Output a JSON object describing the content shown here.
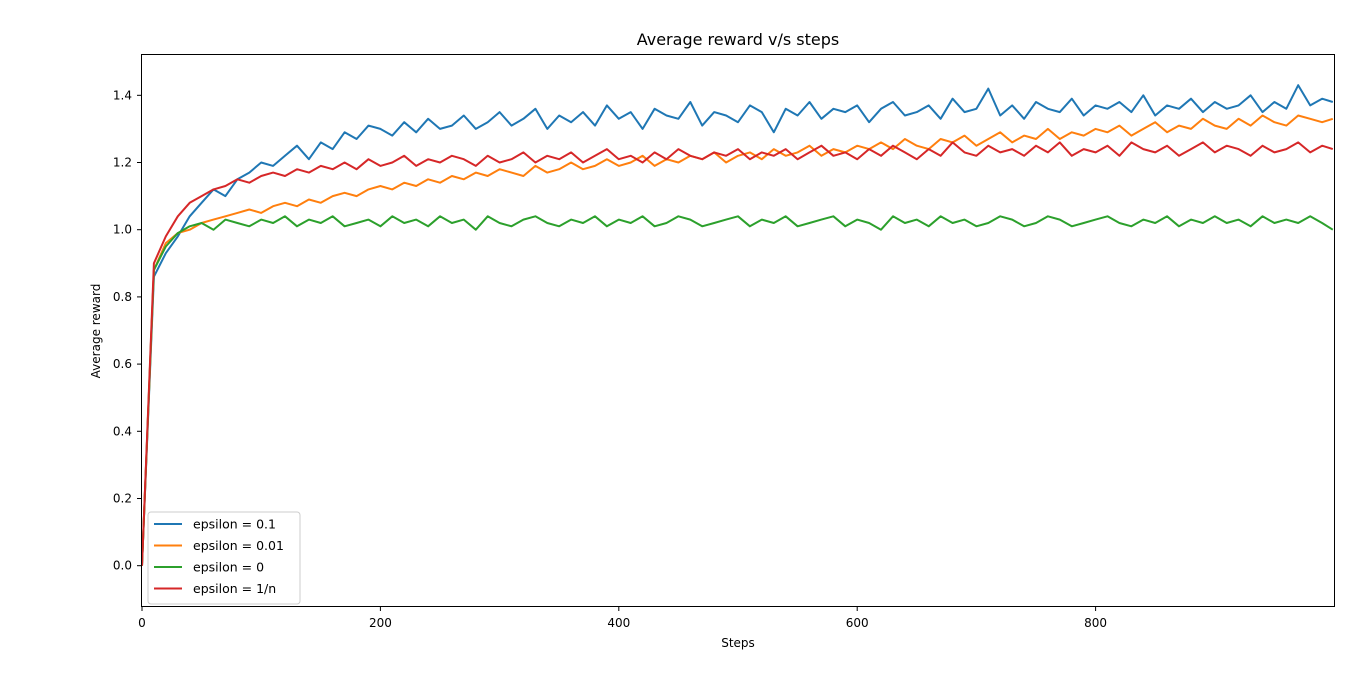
{
  "chart_data": {
    "type": "line",
    "title": "Average reward v/s steps",
    "xlabel": "Steps",
    "ylabel": "Average reward",
    "xlim": [
      0,
      1000
    ],
    "ylim": [
      -0.12,
      1.52
    ],
    "xticks": [
      0,
      200,
      400,
      600,
      800
    ],
    "xtick_labels": [
      "0",
      "200",
      "400",
      "600",
      "800"
    ],
    "yticks": [
      0.0,
      0.2,
      0.4,
      0.6,
      0.8,
      1.0,
      1.2,
      1.4
    ],
    "ytick_labels": [
      "0.0",
      "0.2",
      "0.4",
      "0.6",
      "0.8",
      "1.0",
      "1.2",
      "1.4"
    ],
    "grid": false,
    "legend_position": "bottom-left",
    "sampled_every": 10,
    "series": [
      {
        "name": "epsilon = 0.1",
        "color": "#1f77b4",
        "x": [
          0,
          10,
          20,
          30,
          40,
          50,
          60,
          70,
          80,
          90,
          100,
          110,
          120,
          130,
          140,
          150,
          160,
          170,
          180,
          190,
          200,
          210,
          220,
          230,
          240,
          250,
          260,
          270,
          280,
          290,
          300,
          310,
          320,
          330,
          340,
          350,
          360,
          370,
          380,
          390,
          400,
          410,
          420,
          430,
          440,
          450,
          460,
          470,
          480,
          490,
          500,
          510,
          520,
          530,
          540,
          550,
          560,
          570,
          580,
          590,
          600,
          610,
          620,
          630,
          640,
          650,
          660,
          670,
          680,
          690,
          700,
          710,
          720,
          730,
          740,
          750,
          760,
          770,
          780,
          790,
          800,
          810,
          820,
          830,
          840,
          850,
          860,
          870,
          880,
          890,
          900,
          910,
          920,
          930,
          940,
          950,
          960,
          970,
          980,
          990,
          999
        ],
        "values": [
          0.0,
          0.86,
          0.93,
          0.98,
          1.04,
          1.08,
          1.12,
          1.1,
          1.15,
          1.17,
          1.2,
          1.19,
          1.22,
          1.25,
          1.21,
          1.26,
          1.24,
          1.29,
          1.27,
          1.31,
          1.3,
          1.28,
          1.32,
          1.29,
          1.33,
          1.3,
          1.31,
          1.34,
          1.3,
          1.32,
          1.35,
          1.31,
          1.33,
          1.36,
          1.3,
          1.34,
          1.32,
          1.35,
          1.31,
          1.37,
          1.33,
          1.35,
          1.3,
          1.36,
          1.34,
          1.33,
          1.38,
          1.31,
          1.35,
          1.34,
          1.32,
          1.37,
          1.35,
          1.29,
          1.36,
          1.34,
          1.38,
          1.33,
          1.36,
          1.35,
          1.37,
          1.32,
          1.36,
          1.38,
          1.34,
          1.35,
          1.37,
          1.33,
          1.39,
          1.35,
          1.36,
          1.42,
          1.34,
          1.37,
          1.33,
          1.38,
          1.36,
          1.35,
          1.39,
          1.34,
          1.37,
          1.36,
          1.38,
          1.35,
          1.4,
          1.34,
          1.37,
          1.36,
          1.39,
          1.35,
          1.38,
          1.36,
          1.37,
          1.4,
          1.35,
          1.38,
          1.36,
          1.43,
          1.37,
          1.39,
          1.38
        ]
      },
      {
        "name": "epsilon = 0.01",
        "color": "#ff7f0e",
        "x": [
          0,
          10,
          20,
          30,
          40,
          50,
          60,
          70,
          80,
          90,
          100,
          110,
          120,
          130,
          140,
          150,
          160,
          170,
          180,
          190,
          200,
          210,
          220,
          230,
          240,
          250,
          260,
          270,
          280,
          290,
          300,
          310,
          320,
          330,
          340,
          350,
          360,
          370,
          380,
          390,
          400,
          410,
          420,
          430,
          440,
          450,
          460,
          470,
          480,
          490,
          500,
          510,
          520,
          530,
          540,
          550,
          560,
          570,
          580,
          590,
          600,
          610,
          620,
          630,
          640,
          650,
          660,
          670,
          680,
          690,
          700,
          710,
          720,
          730,
          740,
          750,
          760,
          770,
          780,
          790,
          800,
          810,
          820,
          830,
          840,
          850,
          860,
          870,
          880,
          890,
          900,
          910,
          920,
          930,
          940,
          950,
          960,
          970,
          980,
          990,
          999
        ],
        "values": [
          0.0,
          0.88,
          0.96,
          0.99,
          1.0,
          1.02,
          1.03,
          1.04,
          1.05,
          1.06,
          1.05,
          1.07,
          1.08,
          1.07,
          1.09,
          1.08,
          1.1,
          1.11,
          1.1,
          1.12,
          1.13,
          1.12,
          1.14,
          1.13,
          1.15,
          1.14,
          1.16,
          1.15,
          1.17,
          1.16,
          1.18,
          1.17,
          1.16,
          1.19,
          1.17,
          1.18,
          1.2,
          1.18,
          1.19,
          1.21,
          1.19,
          1.2,
          1.22,
          1.19,
          1.21,
          1.2,
          1.22,
          1.21,
          1.23,
          1.2,
          1.22,
          1.23,
          1.21,
          1.24,
          1.22,
          1.23,
          1.25,
          1.22,
          1.24,
          1.23,
          1.25,
          1.24,
          1.26,
          1.24,
          1.27,
          1.25,
          1.24,
          1.27,
          1.26,
          1.28,
          1.25,
          1.27,
          1.29,
          1.26,
          1.28,
          1.27,
          1.3,
          1.27,
          1.29,
          1.28,
          1.3,
          1.29,
          1.31,
          1.28,
          1.3,
          1.32,
          1.29,
          1.31,
          1.3,
          1.33,
          1.31,
          1.3,
          1.33,
          1.31,
          1.34,
          1.32,
          1.31,
          1.34,
          1.33,
          1.32,
          1.33
        ]
      },
      {
        "name": "epsilon = 0",
        "color": "#2ca02c",
        "x": [
          0,
          10,
          20,
          30,
          40,
          50,
          60,
          70,
          80,
          90,
          100,
          110,
          120,
          130,
          140,
          150,
          160,
          170,
          180,
          190,
          200,
          210,
          220,
          230,
          240,
          250,
          260,
          270,
          280,
          290,
          300,
          310,
          320,
          330,
          340,
          350,
          360,
          370,
          380,
          390,
          400,
          410,
          420,
          430,
          440,
          450,
          460,
          470,
          480,
          490,
          500,
          510,
          520,
          530,
          540,
          550,
          560,
          570,
          580,
          590,
          600,
          610,
          620,
          630,
          640,
          650,
          660,
          670,
          680,
          690,
          700,
          710,
          720,
          730,
          740,
          750,
          760,
          770,
          780,
          790,
          800,
          810,
          820,
          830,
          840,
          850,
          860,
          870,
          880,
          890,
          900,
          910,
          920,
          930,
          940,
          950,
          960,
          970,
          980,
          990,
          999
        ],
        "values": [
          0.0,
          0.88,
          0.95,
          0.99,
          1.01,
          1.02,
          1.0,
          1.03,
          1.02,
          1.01,
          1.03,
          1.02,
          1.04,
          1.01,
          1.03,
          1.02,
          1.04,
          1.01,
          1.02,
          1.03,
          1.01,
          1.04,
          1.02,
          1.03,
          1.01,
          1.04,
          1.02,
          1.03,
          1.0,
          1.04,
          1.02,
          1.01,
          1.03,
          1.04,
          1.02,
          1.01,
          1.03,
          1.02,
          1.04,
          1.01,
          1.03,
          1.02,
          1.04,
          1.01,
          1.02,
          1.04,
          1.03,
          1.01,
          1.02,
          1.03,
          1.04,
          1.01,
          1.03,
          1.02,
          1.04,
          1.01,
          1.02,
          1.03,
          1.04,
          1.01,
          1.03,
          1.02,
          1.0,
          1.04,
          1.02,
          1.03,
          1.01,
          1.04,
          1.02,
          1.03,
          1.01,
          1.02,
          1.04,
          1.03,
          1.01,
          1.02,
          1.04,
          1.03,
          1.01,
          1.02,
          1.03,
          1.04,
          1.02,
          1.01,
          1.03,
          1.02,
          1.04,
          1.01,
          1.03,
          1.02,
          1.04,
          1.02,
          1.03,
          1.01,
          1.04,
          1.02,
          1.03,
          1.02,
          1.04,
          1.02,
          1.0
        ]
      },
      {
        "name": "epsilon = 1/n",
        "color": "#d62728",
        "x": [
          0,
          10,
          20,
          30,
          40,
          50,
          60,
          70,
          80,
          90,
          100,
          110,
          120,
          130,
          140,
          150,
          160,
          170,
          180,
          190,
          200,
          210,
          220,
          230,
          240,
          250,
          260,
          270,
          280,
          290,
          300,
          310,
          320,
          330,
          340,
          350,
          360,
          370,
          380,
          390,
          400,
          410,
          420,
          430,
          440,
          450,
          460,
          470,
          480,
          490,
          500,
          510,
          520,
          530,
          540,
          550,
          560,
          570,
          580,
          590,
          600,
          610,
          620,
          630,
          640,
          650,
          660,
          670,
          680,
          690,
          700,
          710,
          720,
          730,
          740,
          750,
          760,
          770,
          780,
          790,
          800,
          810,
          820,
          830,
          840,
          850,
          860,
          870,
          880,
          890,
          900,
          910,
          920,
          930,
          940,
          950,
          960,
          970,
          980,
          990,
          999
        ],
        "values": [
          0.0,
          0.9,
          0.98,
          1.04,
          1.08,
          1.1,
          1.12,
          1.13,
          1.15,
          1.14,
          1.16,
          1.17,
          1.16,
          1.18,
          1.17,
          1.19,
          1.18,
          1.2,
          1.18,
          1.21,
          1.19,
          1.2,
          1.22,
          1.19,
          1.21,
          1.2,
          1.22,
          1.21,
          1.19,
          1.22,
          1.2,
          1.21,
          1.23,
          1.2,
          1.22,
          1.21,
          1.23,
          1.2,
          1.22,
          1.24,
          1.21,
          1.22,
          1.2,
          1.23,
          1.21,
          1.24,
          1.22,
          1.21,
          1.23,
          1.22,
          1.24,
          1.21,
          1.23,
          1.22,
          1.24,
          1.21,
          1.23,
          1.25,
          1.22,
          1.23,
          1.21,
          1.24,
          1.22,
          1.25,
          1.23,
          1.21,
          1.24,
          1.22,
          1.26,
          1.23,
          1.22,
          1.25,
          1.23,
          1.24,
          1.22,
          1.25,
          1.23,
          1.26,
          1.22,
          1.24,
          1.23,
          1.25,
          1.22,
          1.26,
          1.24,
          1.23,
          1.25,
          1.22,
          1.24,
          1.26,
          1.23,
          1.25,
          1.24,
          1.22,
          1.25,
          1.23,
          1.24,
          1.26,
          1.23,
          1.25,
          1.24
        ]
      }
    ]
  }
}
